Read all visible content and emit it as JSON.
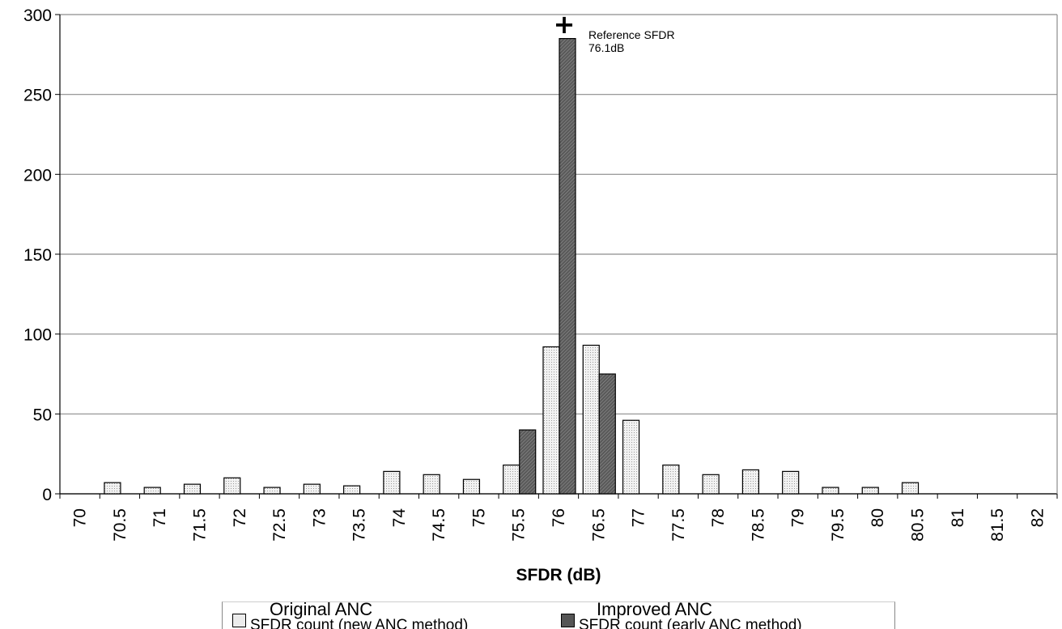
{
  "chart_data": {
    "type": "bar",
    "categories": [
      "70",
      "70.5",
      "71",
      "71.5",
      "72",
      "72.5",
      "73",
      "73.5",
      "74",
      "74.5",
      "75",
      "75.5",
      "76",
      "76.5",
      "77",
      "77.5",
      "78",
      "78.5",
      "79",
      "79.5",
      "80",
      "80.5",
      "81",
      "81.5",
      "82"
    ],
    "series": [
      {
        "name": "Original ANC",
        "legend_subtext": "SFDR count (new ANC method)",
        "color": "#e6e6e6",
        "values": [
          0,
          7,
          4,
          6,
          10,
          4,
          6,
          5,
          14,
          12,
          9,
          18,
          92,
          93,
          46,
          18,
          12,
          15,
          14,
          4,
          4,
          7,
          0,
          0,
          0
        ]
      },
      {
        "name": "Improved ANC",
        "legend_subtext": "SFDR count (early ANC method)",
        "color": "#6e6e6e",
        "values": [
          0,
          0,
          0,
          0,
          0,
          0,
          0,
          0,
          0,
          0,
          0,
          40,
          285,
          75,
          0,
          0,
          0,
          0,
          0,
          0,
          0,
          0,
          0,
          0,
          0
        ]
      }
    ],
    "xlabel": "SFDR (dB)",
    "ylabel": "",
    "ylim": [
      0,
      300
    ],
    "yticks": [
      0,
      50,
      100,
      150,
      200,
      250,
      300
    ],
    "grid": true,
    "legend_position": "bottom",
    "annotation": {
      "line1": "Reference SFDR",
      "line2": "76.1dB",
      "marker": "+",
      "x_value": 76.1,
      "y_value": 295
    }
  }
}
